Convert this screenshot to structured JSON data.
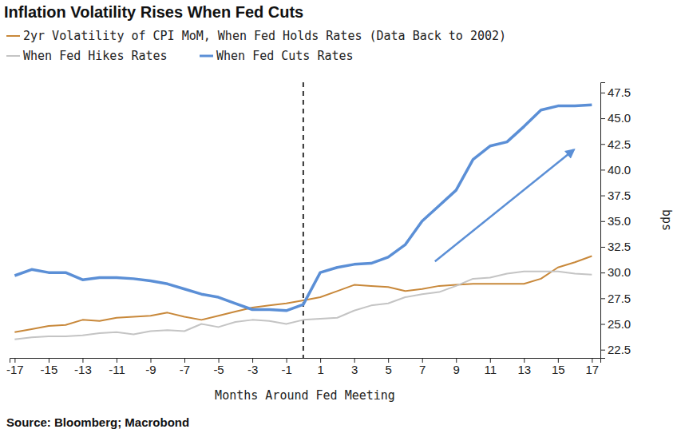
{
  "chart_data": {
    "type": "line",
    "title": "Inflation Volatility Rises When Fed Cuts",
    "x_label": "Months Around Fed Meeting",
    "y_label": "bps",
    "source": "Source: Bloomberg; Macrobond",
    "x": [
      -17,
      -16,
      -15,
      -14,
      -13,
      -12,
      -11,
      -10,
      -9,
      -8,
      -7,
      -6,
      -5,
      -4,
      -3,
      -2,
      -1,
      0,
      1,
      2,
      3,
      4,
      5,
      6,
      7,
      8,
      9,
      10,
      11,
      12,
      13,
      14,
      15,
      16,
      17
    ],
    "series": [
      {
        "name": "2yr Volatility of CPI MoM, When Fed Holds Rates (Data Back to 2002)",
        "color": "#c8883a",
        "values": [
          24.2,
          24.5,
          24.8,
          24.9,
          25.4,
          25.3,
          25.6,
          25.7,
          25.8,
          26.1,
          25.7,
          25.4,
          25.8,
          26.2,
          26.6,
          26.8,
          27.0,
          27.3,
          27.6,
          28.2,
          28.8,
          28.7,
          28.6,
          28.2,
          28.4,
          28.7,
          28.8,
          28.9,
          28.9,
          28.9,
          28.9,
          29.4,
          30.5,
          31.0,
          31.6
        ]
      },
      {
        "name": "When Fed Hikes Rates",
        "color": "#c4c4c4",
        "values": [
          23.5,
          23.7,
          23.8,
          23.8,
          23.9,
          24.1,
          24.2,
          24.0,
          24.3,
          24.4,
          24.3,
          25.0,
          24.7,
          25.2,
          25.4,
          25.3,
          25.0,
          25.4,
          25.5,
          25.6,
          26.3,
          26.8,
          27.0,
          27.6,
          27.9,
          28.1,
          28.7,
          29.4,
          29.5,
          29.9,
          30.1,
          30.1,
          30.1,
          29.9,
          29.8
        ]
      },
      {
        "name": "When Fed Cuts Rates",
        "color": "#5b8fd6",
        "values": [
          29.7,
          30.3,
          30.0,
          30.0,
          29.3,
          29.5,
          29.5,
          29.4,
          29.2,
          28.9,
          28.4,
          27.9,
          27.6,
          27.0,
          26.4,
          26.4,
          26.3,
          26.9,
          30.0,
          30.5,
          30.8,
          30.9,
          31.5,
          32.7,
          35.0,
          36.5,
          38.0,
          41.0,
          42.3,
          42.7,
          44.2,
          45.8,
          46.2,
          46.2,
          46.3
        ]
      }
    ],
    "reference_line": {
      "x": 0,
      "line_style": "dashed"
    },
    "xlim": [
      -17.3,
      17.5
    ],
    "xticks": [
      -17,
      -15,
      -13,
      -11,
      -9,
      -7,
      -5,
      -3,
      -1,
      1,
      3,
      5,
      7,
      9,
      11,
      13,
      15,
      17
    ],
    "ylim": [
      21.7,
      48.5
    ],
    "yticks": [
      22.5,
      25.0,
      27.5,
      30.0,
      32.5,
      35.0,
      37.5,
      40.0,
      42.5,
      45.0,
      47.5
    ],
    "grid": false
  }
}
